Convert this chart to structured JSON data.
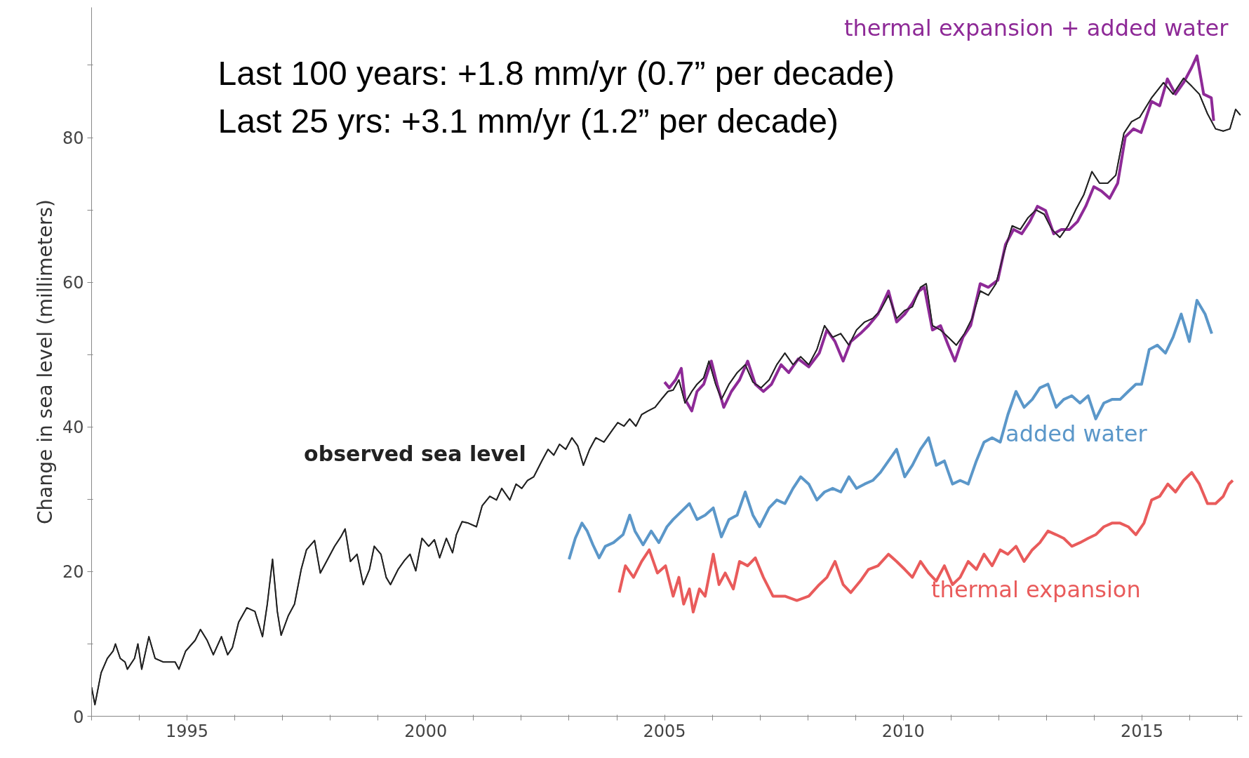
{
  "chart_data": {
    "type": "line",
    "ylabel": "Change in sea level (millimeters)",
    "annotations": [
      "Last 100 years: +1.8 mm/yr (0.7” per decade)",
      "Last 25 yrs: +3.1 mm/yr (1.2” per decade)"
    ],
    "xlim": [
      1993,
      2017.1
    ],
    "ylim": [
      0,
      98
    ],
    "xticks": [
      {
        "value": 1993,
        "label": null
      },
      {
        "value": 1994,
        "label": null
      },
      1995,
      {
        "value": 1996,
        "label": null
      },
      {
        "value": 1997,
        "label": null
      },
      {
        "value": 1998,
        "label": null
      },
      {
        "value": 1999,
        "label": null
      },
      2000,
      {
        "value": 2001,
        "label": null
      },
      {
        "value": 2002,
        "label": null
      },
      {
        "value": 2003,
        "label": null
      },
      {
        "value": 2004,
        "label": null
      },
      2005,
      {
        "value": 2006,
        "label": null
      },
      {
        "value": 2007,
        "label": null
      },
      {
        "value": 2008,
        "label": null
      },
      {
        "value": 2009,
        "label": null
      },
      2010,
      {
        "value": 2011,
        "label": null
      },
      {
        "value": 2012,
        "label": null
      },
      {
        "value": 2013,
        "label": null
      },
      {
        "value": 2014,
        "label": null
      },
      2015,
      {
        "value": 2016,
        "label": null
      },
      {
        "value": 2017,
        "label": null
      }
    ],
    "yticks": [
      0,
      {
        "value": 10,
        "label": null
      },
      20,
      {
        "value": 30,
        "label": null
      },
      40,
      {
        "value": 50,
        "label": null
      },
      60,
      {
        "value": 70,
        "label": null
      },
      80,
      {
        "value": 90,
        "label": null
      }
    ],
    "line_style": "solid",
    "series": [
      {
        "name": "observed sea level",
        "color": "#222222",
        "x": [
          1993.0,
          1993.07,
          1993.2,
          1993.33,
          1993.45,
          1993.5,
          1993.6,
          1993.7,
          1993.75,
          1993.9,
          1993.97,
          1994.05,
          1994.2,
          1994.33,
          1994.5,
          1994.75,
          1994.83,
          1994.97,
          1995.17,
          1995.28,
          1995.42,
          1995.55,
          1995.72,
          1995.85,
          1995.95,
          1996.08,
          1996.25,
          1996.42,
          1996.58,
          1996.68,
          1996.79,
          1996.89,
          1996.97,
          1997.12,
          1997.25,
          1997.39,
          1997.5,
          1997.67,
          1997.79,
          1997.92,
          1998.09,
          1998.22,
          1998.31,
          1998.42,
          1998.56,
          1998.69,
          1998.82,
          1998.92,
          1999.06,
          1999.17,
          1999.26,
          1999.42,
          1999.56,
          1999.67,
          1999.79,
          1999.92,
          2000.06,
          2000.18,
          2000.29,
          2000.43,
          2000.56,
          2000.64,
          2000.76,
          2000.89,
          2001.06,
          2001.18,
          2001.34,
          2001.48,
          2001.59,
          2001.76,
          2001.89,
          2002.01,
          2002.13,
          2002.26,
          2002.43,
          2002.56,
          2002.68,
          2002.8,
          2002.93,
          2003.06,
          2003.18,
          2003.3,
          2003.43,
          2003.56,
          2003.73,
          2003.9,
          2004.02,
          2004.15,
          2004.27,
          2004.4,
          2004.52,
          2004.65,
          2004.8,
          2004.93,
          2005.07,
          2005.18,
          2005.3,
          2005.43,
          2005.57,
          2005.68,
          2005.82,
          2005.93,
          2006.07,
          2006.19,
          2006.35,
          2006.52,
          2006.69,
          2006.85,
          2007.02,
          2007.19,
          2007.35,
          2007.52,
          2007.69,
          2007.85,
          2008.02,
          2008.19,
          2008.35,
          2008.52,
          2008.69,
          2008.86,
          2009.02,
          2009.19,
          2009.36,
          2009.52,
          2009.69,
          2009.86,
          2010.03,
          2010.19,
          2010.36,
          2010.48,
          2010.61,
          2010.78,
          2010.94,
          2011.11,
          2011.28,
          2011.44,
          2011.61,
          2011.78,
          2011.94,
          2012.11,
          2012.28,
          2012.45,
          2012.61,
          2012.78,
          2012.95,
          2013.11,
          2013.28,
          2013.45,
          2013.61,
          2013.78,
          2013.95,
          2014.11,
          2014.28,
          2014.45,
          2014.62,
          2014.78,
          2014.95,
          2015.2,
          2015.45,
          2015.65,
          2015.87,
          2016.04,
          2016.2,
          2016.37,
          2016.54,
          2016.7,
          2016.84,
          2016.96,
          2017.06
        ],
        "values": [
          4,
          1.6,
          6,
          8,
          9,
          10,
          8,
          7.5,
          6.5,
          8,
          10,
          6.5,
          11,
          8,
          7.5,
          7.5,
          6.5,
          9,
          10.5,
          12,
          10.5,
          8.5,
          11,
          8.5,
          9.5,
          13,
          15,
          14.5,
          11,
          15.5,
          21.7,
          14.5,
          11.2,
          13.9,
          15.5,
          20.3,
          23,
          24.3,
          19.8,
          21.4,
          23.5,
          24.8,
          25.9,
          21.4,
          22.4,
          18.2,
          20.3,
          23.5,
          22.4,
          19.2,
          18.2,
          20.3,
          21.6,
          22.4,
          20.1,
          24.6,
          23.5,
          24.4,
          21.9,
          24.6,
          22.6,
          25.1,
          26.9,
          26.7,
          26.2,
          29.1,
          30.4,
          29.9,
          31.5,
          29.9,
          32.1,
          31.5,
          32.6,
          33.1,
          35.3,
          36.9,
          36.1,
          37.6,
          36.9,
          38.5,
          37.4,
          34.7,
          36.9,
          38.5,
          37.9,
          39.5,
          40.6,
          40.1,
          41.1,
          40.1,
          41.7,
          42.2,
          42.7,
          43.8,
          44.9,
          45.1,
          46.5,
          43.3,
          44.9,
          45.9,
          46.8,
          49.1,
          45.9,
          43.8,
          45.9,
          47.5,
          48.6,
          46.2,
          45.4,
          46.5,
          48.6,
          50.2,
          48.6,
          49.7,
          48.6,
          50.7,
          54,
          52.4,
          52.9,
          51.3,
          53.4,
          54.5,
          55,
          56.1,
          58.2,
          55,
          56.1,
          56.6,
          59.3,
          59.8,
          54,
          53.4,
          52.4,
          51.3,
          52.9,
          55,
          58.8,
          58.2,
          59.8,
          64.1,
          67.8,
          67.3,
          68.9,
          70,
          69.4,
          67.3,
          66.2,
          67.8,
          70,
          72.1,
          75.3,
          73.7,
          73.7,
          74.8,
          80.6,
          82.2,
          82.8,
          85.5,
          87.6,
          86,
          88.2,
          87.1,
          86,
          83.3,
          81.2,
          80.9,
          81.2,
          83.9,
          83.1
        ]
      },
      {
        "name": "thermal expansion + added water",
        "color": "#8e2a97",
        "x": [
          2005.0,
          2005.1,
          2005.23,
          2005.35,
          2005.43,
          2005.57,
          2005.68,
          2005.82,
          2005.98,
          2006.1,
          2006.24,
          2006.4,
          2006.57,
          2006.74,
          2006.9,
          2007.07,
          2007.24,
          2007.44,
          2007.6,
          2007.8,
          2008.02,
          2008.24,
          2008.4,
          2008.57,
          2008.74,
          2008.9,
          2009.1,
          2009.27,
          2009.47,
          2009.69,
          2009.86,
          2010.03,
          2010.19,
          2010.33,
          2010.44,
          2010.61,
          2010.78,
          2010.94,
          2011.08,
          2011.25,
          2011.41,
          2011.61,
          2011.78,
          2011.98,
          2012.14,
          2012.31,
          2012.48,
          2012.65,
          2012.81,
          2012.98,
          2013.15,
          2013.31,
          2013.48,
          2013.65,
          2013.82,
          2013.99,
          2014.15,
          2014.32,
          2014.49,
          2014.65,
          2014.82,
          2014.98,
          2015.2,
          2015.37,
          2015.53,
          2015.7,
          2015.87,
          2016.04,
          2016.15,
          2016.29,
          2016.45,
          2016.5
        ],
        "values": [
          46.2,
          45.4,
          46.5,
          48.1,
          43.8,
          42.2,
          44.9,
          45.9,
          49.1,
          45.9,
          42.7,
          44.9,
          46.5,
          49.1,
          45.9,
          44.9,
          45.9,
          48.6,
          47.5,
          49.4,
          48.3,
          50.2,
          53.4,
          51.8,
          49.1,
          51.8,
          52.9,
          54,
          55.6,
          58.8,
          54.5,
          55.6,
          57.1,
          58.8,
          59.3,
          53.4,
          54,
          51.3,
          49.1,
          52.4,
          54,
          59.8,
          59.3,
          60.3,
          65.2,
          67.3,
          66.7,
          68.4,
          70.5,
          69.9,
          66.7,
          67.3,
          67.3,
          68.4,
          70.5,
          73.2,
          72.6,
          71.6,
          73.7,
          80.1,
          81.2,
          80.7,
          85,
          84.4,
          88.1,
          86,
          87.6,
          89.7,
          91.3,
          86,
          85.5,
          82.3
        ]
      },
      {
        "name": "added water",
        "color": "#5b97c9",
        "x": [
          2003.0,
          2003.13,
          2003.27,
          2003.38,
          2003.5,
          2003.63,
          2003.76,
          2003.93,
          2004.13,
          2004.27,
          2004.38,
          2004.55,
          2004.72,
          2004.88,
          2005.05,
          2005.18,
          2005.35,
          2005.52,
          2005.68,
          2005.85,
          2006.02,
          2006.19,
          2006.35,
          2006.52,
          2006.69,
          2006.85,
          2006.99,
          2007.19,
          2007.35,
          2007.52,
          2007.69,
          2007.85,
          2008.02,
          2008.19,
          2008.35,
          2008.52,
          2008.69,
          2008.86,
          2009.02,
          2009.19,
          2009.36,
          2009.52,
          2009.69,
          2009.86,
          2010.03,
          2010.19,
          2010.36,
          2010.53,
          2010.69,
          2010.86,
          2011.03,
          2011.19,
          2011.36,
          2011.53,
          2011.69,
          2011.86,
          2012.03,
          2012.19,
          2012.36,
          2012.53,
          2012.7,
          2012.86,
          2013.03,
          2013.2,
          2013.36,
          2013.53,
          2013.7,
          2013.87,
          2014.03,
          2014.2,
          2014.37,
          2014.54,
          2014.71,
          2014.87,
          2014.99,
          2015.15,
          2015.32,
          2015.49,
          2015.65,
          2015.82,
          2015.99,
          2016.15,
          2016.32,
          2016.46
        ],
        "values": [
          21.7,
          24.6,
          26.7,
          25.6,
          23.7,
          21.9,
          23.5,
          24,
          25.1,
          27.8,
          25.6,
          23.7,
          25.6,
          24,
          26.2,
          27.2,
          28.3,
          29.4,
          27.2,
          27.8,
          28.8,
          24.8,
          27.2,
          27.8,
          31,
          27.8,
          26.2,
          28.8,
          29.9,
          29.4,
          31.5,
          33.1,
          32.1,
          29.9,
          31,
          31.5,
          31,
          33.1,
          31.5,
          32.1,
          32.6,
          33.7,
          35.3,
          36.9,
          33.1,
          34.7,
          36.9,
          38.5,
          34.7,
          35.3,
          32.1,
          32.6,
          32.1,
          35.3,
          37.9,
          38.5,
          37.9,
          41.7,
          44.9,
          42.7,
          43.8,
          45.4,
          45.9,
          42.7,
          43.8,
          44.3,
          43.3,
          44.3,
          41.1,
          43.3,
          43.8,
          43.8,
          44.9,
          45.9,
          45.9,
          50.7,
          51.3,
          50.2,
          52.4,
          55.6,
          51.8,
          57.5,
          55.6,
          52.9
        ]
      },
      {
        "name": "thermal expansion",
        "color": "#e95b5b",
        "x": [
          2004.05,
          2004.18,
          2004.35,
          2004.52,
          2004.68,
          2004.85,
          2005.02,
          2005.18,
          2005.3,
          2005.4,
          2005.52,
          2005.6,
          2005.73,
          2005.85,
          2006.02,
          2006.14,
          2006.27,
          2006.44,
          2006.57,
          2006.74,
          2006.9,
          2007.07,
          2007.27,
          2007.52,
          2007.77,
          2008.02,
          2008.24,
          2008.4,
          2008.57,
          2008.74,
          2008.9,
          2009.1,
          2009.27,
          2009.47,
          2009.69,
          2009.86,
          2010.03,
          2010.19,
          2010.36,
          2010.53,
          2010.69,
          2010.86,
          2011.03,
          2011.19,
          2011.36,
          2011.53,
          2011.69,
          2011.86,
          2012.03,
          2012.19,
          2012.36,
          2012.53,
          2012.7,
          2012.86,
          2013.03,
          2013.2,
          2013.36,
          2013.53,
          2013.7,
          2013.87,
          2014.03,
          2014.2,
          2014.37,
          2014.54,
          2014.71,
          2014.87,
          2015.04,
          2015.2,
          2015.37,
          2015.54,
          2015.7,
          2015.87,
          2016.04,
          2016.2,
          2016.37,
          2016.54,
          2016.7,
          2016.82,
          2016.9
        ],
        "values": [
          17.1,
          20.8,
          19.2,
          21.4,
          23,
          19.8,
          20.8,
          16.6,
          19.2,
          15.5,
          17.6,
          14.4,
          17.6,
          16.6,
          22.4,
          18.2,
          19.8,
          17.6,
          21.4,
          20.8,
          21.9,
          19.2,
          16.6,
          16.6,
          16,
          16.6,
          18.2,
          19.2,
          21.4,
          18.2,
          17.1,
          18.7,
          20.3,
          20.8,
          22.4,
          21.4,
          20.3,
          19.2,
          21.4,
          19.8,
          18.7,
          20.8,
          18.2,
          19.2,
          21.4,
          20.3,
          22.4,
          20.8,
          23,
          22.4,
          23.5,
          21.4,
          23,
          24,
          25.6,
          25.1,
          24.6,
          23.5,
          24,
          24.6,
          25.1,
          26.2,
          26.7,
          26.7,
          26.2,
          25.1,
          26.7,
          29.9,
          30.4,
          32.1,
          31,
          32.6,
          33.7,
          32.1,
          29.4,
          29.4,
          30.4,
          32.1,
          32.6
        ]
      }
    ]
  }
}
